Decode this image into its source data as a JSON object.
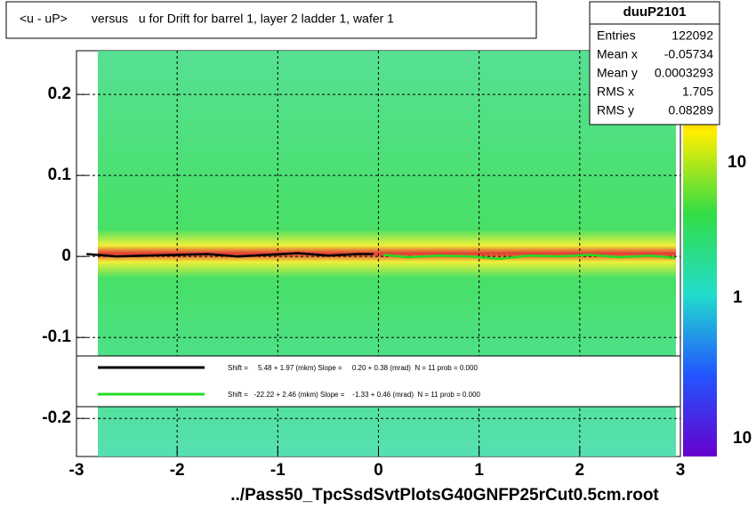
{
  "chart_data": {
    "type": "line",
    "title": "<u - uP>       versus   u for Drift for barrel 1, layer 2 ladder 1, wafer 1",
    "x_label": "../Pass50_TpcSsdSvtPlotsG40GNFP25rCut0.5cm.root",
    "xlim": [
      -3,
      3
    ],
    "xticks": [
      -3,
      -2,
      -1,
      0,
      1,
      2,
      3
    ],
    "ylim": [
      -0.247,
      0.254
    ],
    "yticks": [
      -0.2,
      -0.1,
      0,
      0.1,
      0.2
    ],
    "grid": true,
    "series": [
      {
        "name": "Shift =     5.48 + 1.97 (mkm) Slope =     0.20 + 0.38 (mrad)  N = 11 prob = 0.000",
        "color": "#000000",
        "x": [
          -2.9,
          -2.6,
          -2.3,
          -2.0,
          -1.7,
          -1.4,
          -1.1,
          -0.8,
          -0.5,
          -0.2,
          -0.05
        ],
        "values": [
          0.003,
          0.0,
          0.001,
          0.002,
          0.003,
          0.0,
          0.002,
          0.004,
          0.001,
          0.003,
          0.003
        ]
      },
      {
        "name": "Shift =   -22.22 + 2.46 (mkm) Slope =    -1.33 + 0.46 (mrad)  N = 11 prob = 0.000",
        "color": "#22dd22",
        "x": [
          0.05,
          0.3,
          0.6,
          0.9,
          1.2,
          1.5,
          1.8,
          2.1,
          2.4,
          2.7,
          2.95
        ],
        "values": [
          0.002,
          -0.001,
          0.001,
          0.0,
          -0.003,
          0.001,
          0.0,
          0.002,
          -0.001,
          0.001,
          -0.002
        ]
      }
    ],
    "stats": {
      "name": "duuP2101",
      "rows": [
        [
          "Entries",
          "122092"
        ],
        [
          "Mean x",
          "-0.05734"
        ],
        [
          "Mean y",
          "0.0003293"
        ],
        [
          "RMS x",
          "1.705"
        ],
        [
          "RMS y",
          "0.08289"
        ]
      ]
    },
    "color_scale_labels": [
      "10",
      "1",
      "10"
    ]
  }
}
